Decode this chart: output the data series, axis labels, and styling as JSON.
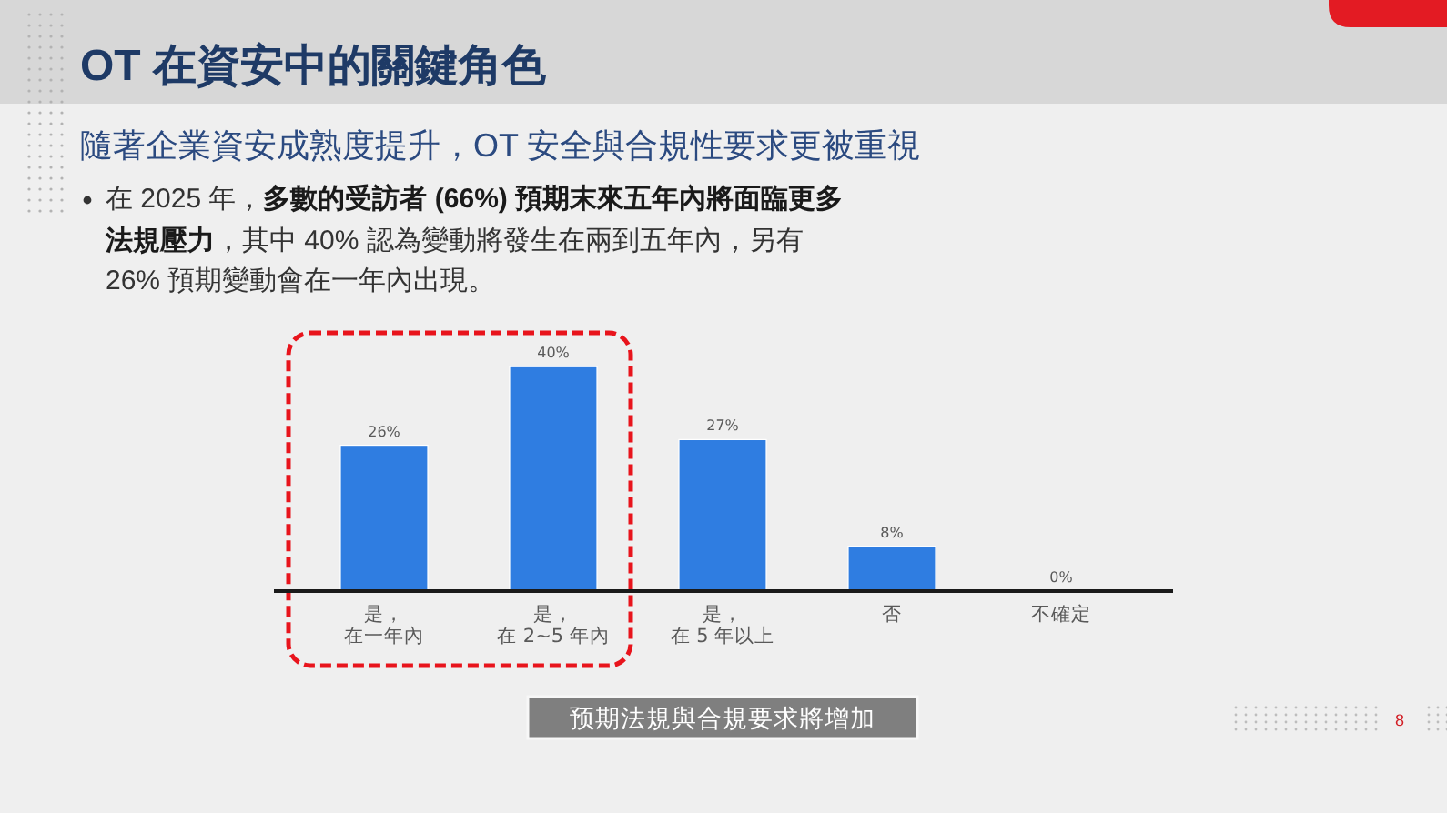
{
  "chart_data": {
    "type": "bar",
    "title": "OT 在資安中的關鍵角色",
    "subtitle": "隨著企業資安成熟度提升，OT 安全與合規性要求更被重視",
    "xlabel": "预期法規與合規要求將增加",
    "categories": [
      "是，在一年內",
      "是，在 2~5 年內",
      "是，在 5 年以上",
      "否",
      "不確定"
    ],
    "values": [
      26,
      40,
      27,
      8,
      0
    ],
    "value_labels": [
      "26%",
      "40%",
      "27%",
      "8%",
      "0%"
    ],
    "color": "#2f7de1",
    "annotations": [
      "在 2025 年，**多數的受訪者 (66%) 預期末來五年內將面臨更多法規壓力**，其中 40% 認為變動將發生在兩到五年內，另有 26% 預期變動會在一年內出現。",
      "8"
    ]
  }
}
